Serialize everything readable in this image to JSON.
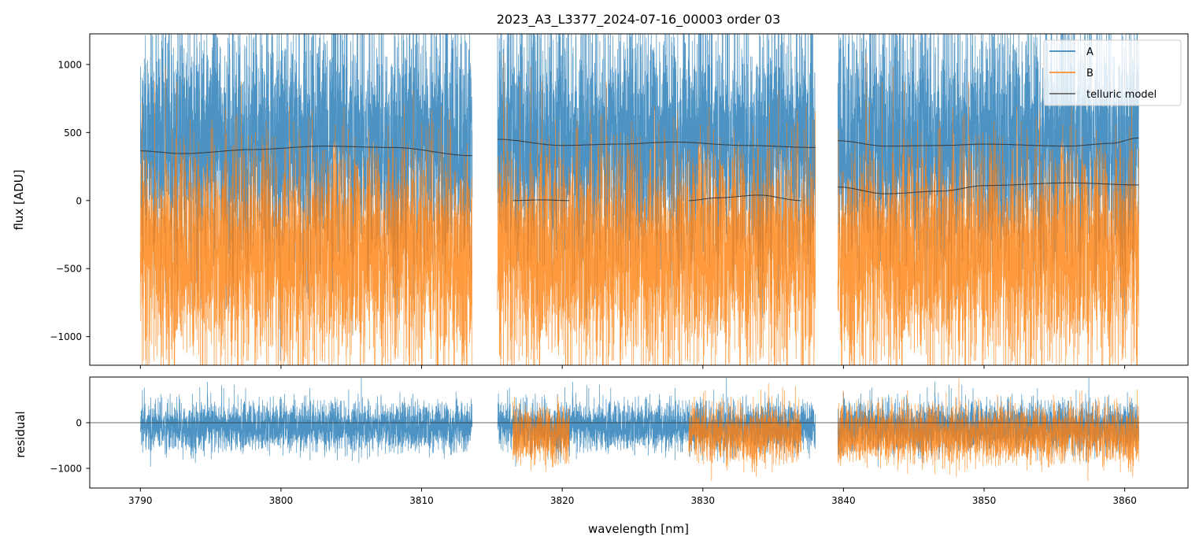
{
  "chart_data": [
    {
      "type": "line",
      "title": "2023_A3_L3377_2024-07-16_00003  order 03",
      "xlabel": "",
      "ylabel": "flux [ADU]",
      "xlim": [
        3786.4,
        3864.5
      ],
      "ylim": [
        -1210,
        1225
      ],
      "xticks": [
        3790,
        3800,
        3810,
        3820,
        3830,
        3840,
        3850,
        3860
      ],
      "yticks": [
        -1000,
        -500,
        0,
        500,
        1000
      ],
      "ytick_labels": [
        "−1000",
        "−500",
        "0",
        "500",
        "1000"
      ],
      "legend": {
        "placement": "top-right",
        "entries": [
          "A",
          "B",
          "telluric model"
        ]
      },
      "colors": {
        "A": "#1f77b4",
        "B": "#ff7f0e",
        "model": "#333333"
      },
      "segments": [
        [
          3790.0,
          3813.6
        ],
        [
          3815.4,
          3838.0
        ],
        [
          3839.6,
          3861.0
        ]
      ],
      "series": [
        {
          "name": "A",
          "mean": 400,
          "noise_std": 420
        },
        {
          "name": "B",
          "mean": -380,
          "noise_std": 380
        }
      ],
      "telluric_model": [
        {
          "trace": "A",
          "x": [
            3790,
            3793,
            3798,
            3803,
            3808,
            3813.6
          ],
          "y": [
            365,
            345,
            375,
            400,
            390,
            330
          ]
        },
        {
          "trace": "A",
          "x": [
            3815.4,
            3820,
            3824,
            3828,
            3833,
            3838
          ],
          "y": [
            450,
            405,
            415,
            430,
            405,
            390
          ]
        },
        {
          "trace": "A",
          "x": [
            3839.6,
            3843,
            3847,
            3850,
            3856,
            3859,
            3861
          ],
          "y": [
            440,
            400,
            405,
            415,
            400,
            420,
            460
          ]
        },
        {
          "trace": "B",
          "x": [
            3816.5,
            3818.5,
            3820.5
          ],
          "y": [
            0,
            5,
            0
          ]
        },
        {
          "trace": "B",
          "x": [
            3829,
            3831,
            3834,
            3837
          ],
          "y": [
            0,
            20,
            40,
            0
          ]
        },
        {
          "trace": "B",
          "x": [
            3839.6,
            3843,
            3847,
            3850,
            3856,
            3861
          ],
          "y": [
            100,
            50,
            70,
            110,
            130,
            115
          ]
        }
      ]
    },
    {
      "type": "line",
      "xlabel": "wavelength [nm]",
      "ylabel": "residual",
      "xlim": [
        3786.4,
        3864.5
      ],
      "ylim": [
        -1430,
        1000
      ],
      "xticks": [
        3790,
        3800,
        3810,
        3820,
        3830,
        3840,
        3850,
        3860
      ],
      "xtick_labels": [
        "3790",
        "3800",
        "3810",
        "3820",
        "3830",
        "3840",
        "3850",
        "3860"
      ],
      "yticks": [
        -1000,
        0
      ],
      "ytick_labels": [
        "−1000",
        "0"
      ],
      "zero_line": 0,
      "series": [
        {
          "name": "A",
          "mean": -100,
          "noise_std": 260,
          "segments": [
            [
              3790.0,
              3813.6
            ],
            [
              3815.4,
              3838.0
            ],
            [
              3839.6,
              3861.0
            ]
          ]
        },
        {
          "name": "B",
          "mean": -280,
          "noise_std": 300,
          "segments": [
            [
              3816.5,
              3820.5
            ],
            [
              3829.0,
              3837.0
            ],
            [
              3839.6,
              3861.0
            ]
          ]
        }
      ]
    }
  ]
}
